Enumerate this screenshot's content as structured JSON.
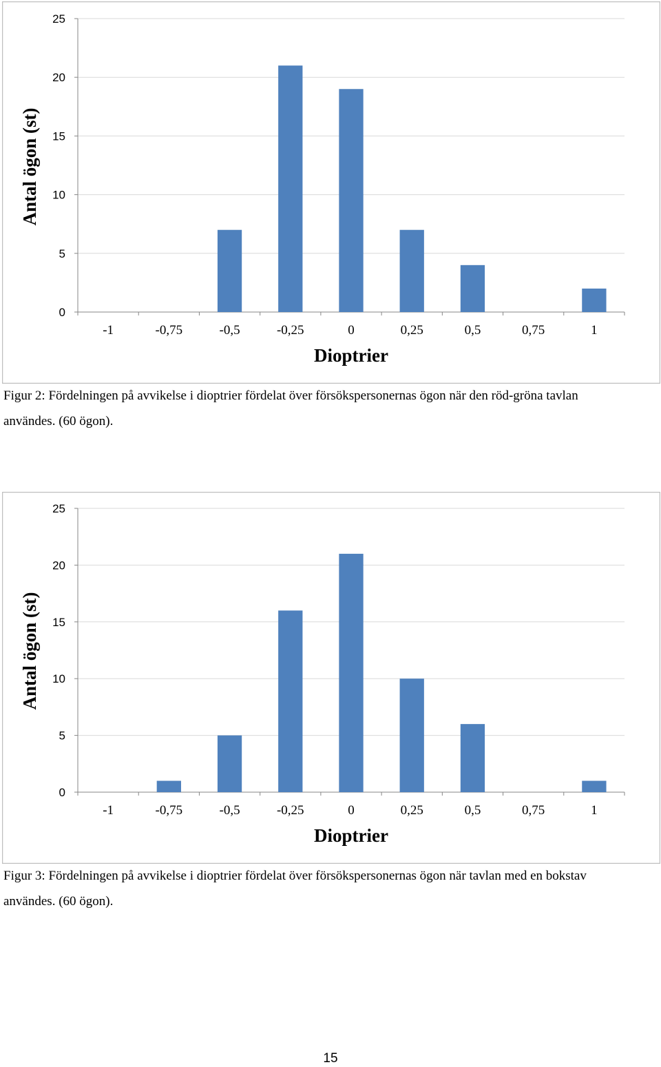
{
  "colors": {
    "bar": "#4f81bd",
    "grid": "#d9d9d9",
    "axis": "#868686",
    "frame": "#bfbfbf"
  },
  "chart_data": [
    {
      "type": "bar",
      "categories": [
        "-1",
        "-0,75",
        "-0,5",
        "-0,25",
        "0",
        "0,25",
        "0,5",
        "0,75",
        "1"
      ],
      "values": [
        0,
        0,
        7,
        21,
        19,
        7,
        4,
        0,
        2
      ],
      "xlabel": "Dioptrier",
      "ylabel": "Antal ögon (st)",
      "ylim": [
        0,
        25
      ],
      "yticks": [
        "0",
        "5",
        "10",
        "15",
        "20",
        "25"
      ],
      "grid": true,
      "caption_lines": [
        "Figur 2: Fördelningen på avvikelse i dioptrier fördelat över försökspersonernas ögon när den röd-gröna tavlan",
        "användes. (60 ögon)."
      ]
    },
    {
      "type": "bar",
      "categories": [
        "-1",
        "-0,75",
        "-0,5",
        "-0,25",
        "0",
        "0,25",
        "0,5",
        "0,75",
        "1"
      ],
      "values": [
        0,
        1,
        5,
        16,
        21,
        10,
        6,
        0,
        1
      ],
      "xlabel": "Dioptrier",
      "ylabel": "Antal ögon (st)",
      "ylim": [
        0,
        25
      ],
      "yticks": [
        "0",
        "5",
        "10",
        "15",
        "20",
        "25"
      ],
      "grid": true,
      "caption_lines": [
        "Figur 3: Fördelningen på avvikelse i dioptrier fördelat över försökspersonernas ögon när tavlan med en bokstav",
        "användes. (60 ögon)."
      ]
    }
  ],
  "page": {
    "number": "15"
  }
}
